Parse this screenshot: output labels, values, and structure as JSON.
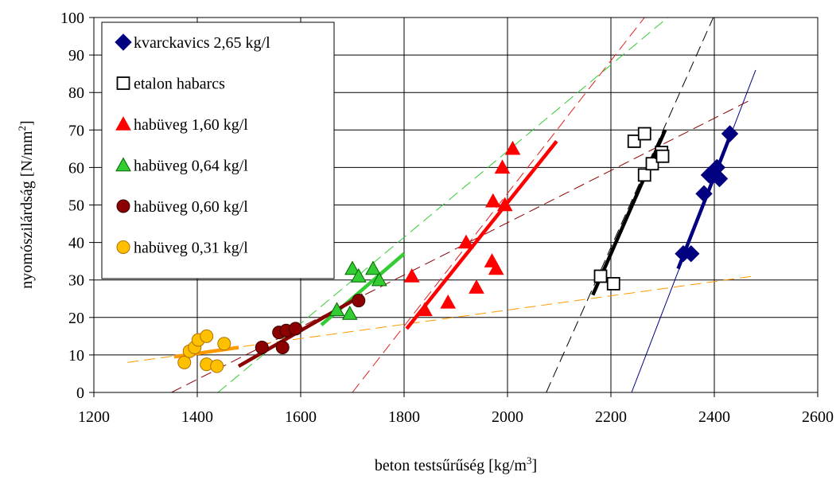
{
  "chart_data": {
    "type": "scatter",
    "title": "",
    "xlabel": "beton testsűrűség [kg/m",
    "xlabel_sup": "3",
    "xlabel_end": "]",
    "ylabel": "nyomószilárdság [N/mm",
    "ylabel_sup": "2",
    "ylabel_end": "]",
    "xlim": [
      1200,
      2600
    ],
    "ylim": [
      0,
      100
    ],
    "x_ticks": [
      1200,
      1400,
      1600,
      1800,
      2000,
      2200,
      2400,
      2600
    ],
    "y_ticks": [
      0,
      10,
      20,
      30,
      40,
      50,
      60,
      70,
      80,
      90,
      100
    ],
    "x_tick_labels": [
      "1200",
      "1400",
      "1600",
      "1800",
      "2000",
      "2200",
      "2400",
      "2600"
    ],
    "y_tick_labels": [
      "0",
      "10",
      "20",
      "30",
      "40",
      "50",
      "60",
      "70",
      "80",
      "90",
      "100"
    ],
    "grid": true,
    "legend_position": "top-left",
    "series": [
      {
        "name": "kvarckavics 2,65 kg/l",
        "marker": "diamond",
        "color": "#000080",
        "points": [
          [
            2340,
            37
          ],
          [
            2355,
            37
          ],
          [
            2380,
            53
          ],
          [
            2390,
            58
          ],
          [
            2400,
            58
          ],
          [
            2405,
            60
          ],
          [
            2410,
            57
          ],
          [
            2430,
            69
          ]
        ],
        "fit": [
          [
            2330,
            33
          ],
          [
            2435,
            70
          ]
        ],
        "trend": [
          [
            2240,
            0
          ],
          [
            2480,
            86
          ]
        ],
        "trend_color": "#000080"
      },
      {
        "name": "etalon habarcs",
        "marker": "square-open",
        "color": "#000000",
        "points": [
          [
            2180,
            31
          ],
          [
            2205,
            29
          ],
          [
            2245,
            67
          ],
          [
            2265,
            69
          ],
          [
            2265,
            58
          ],
          [
            2280,
            61
          ],
          [
            2298,
            64
          ],
          [
            2300,
            63
          ]
        ],
        "fit": [
          [
            2165,
            26
          ],
          [
            2305,
            70
          ]
        ],
        "trend": [
          [
            2075,
            0
          ],
          [
            2398,
            100
          ]
        ],
        "trend_color": "#000000"
      },
      {
        "name": "habüveg 1,60 kg/l",
        "marker": "triangle",
        "color": "#ff0000",
        "points": [
          [
            1815,
            31
          ],
          [
            1840,
            22
          ],
          [
            1885,
            24
          ],
          [
            1920,
            40
          ],
          [
            1940,
            28
          ],
          [
            1970,
            35
          ],
          [
            1972,
            51
          ],
          [
            1978,
            33
          ],
          [
            1990,
            60
          ],
          [
            1995,
            50
          ],
          [
            2010,
            65
          ]
        ],
        "fit": [
          [
            1805,
            17
          ],
          [
            2095,
            67
          ]
        ],
        "trend": [
          [
            1700,
            0
          ],
          [
            2265,
            100
          ]
        ],
        "trend_color": "#e02020"
      },
      {
        "name": "habüveg 0,64 kg/l",
        "marker": "triangle",
        "color": "#33cc33",
        "points": [
          [
            1670,
            22
          ],
          [
            1695,
            21
          ],
          [
            1700,
            33
          ],
          [
            1712,
            31
          ],
          [
            1740,
            33
          ],
          [
            1752,
            30
          ]
        ],
        "fit": [
          [
            1640,
            18
          ],
          [
            1800,
            37
          ]
        ],
        "trend": [
          [
            1440,
            0
          ],
          [
            2310,
            100
          ]
        ],
        "trend_color": "#33cc33"
      },
      {
        "name": "habüveg 0,60 kg/l",
        "marker": "circle",
        "color": "#8b0000",
        "points": [
          [
            1525,
            12
          ],
          [
            1558,
            16
          ],
          [
            1565,
            12
          ],
          [
            1572,
            16.5
          ],
          [
            1590,
            17
          ],
          [
            1712,
            24.5
          ]
        ],
        "fit": [
          [
            1480,
            7
          ],
          [
            1720,
            26
          ]
        ],
        "trend": [
          [
            1350,
            0
          ],
          [
            2470,
            78
          ]
        ],
        "trend_color": "#8b0000"
      },
      {
        "name": "habüveg 0,31 kg/l",
        "marker": "circle",
        "color": "#ffc000",
        "points": [
          [
            1375,
            8
          ],
          [
            1385,
            11
          ],
          [
            1395,
            12
          ],
          [
            1402,
            14
          ],
          [
            1418,
            15
          ],
          [
            1418,
            7.5
          ],
          [
            1438,
            7
          ],
          [
            1452,
            13
          ]
        ],
        "fit": [
          [
            1355,
            9.5
          ],
          [
            1480,
            12
          ]
        ],
        "trend": [
          [
            1265,
            8
          ],
          [
            2475,
            31
          ]
        ],
        "trend_color": "#ff9900",
        "fit_color": "#ff9900"
      }
    ]
  }
}
